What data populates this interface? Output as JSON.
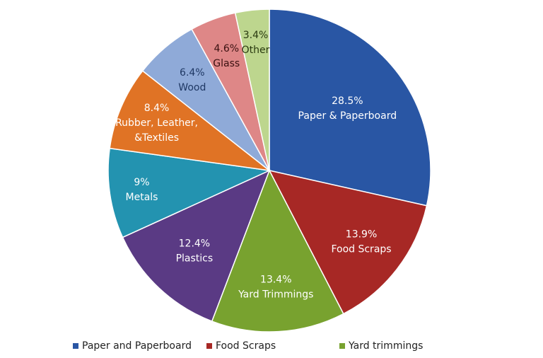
{
  "chart_data": {
    "type": "pie",
    "title": "",
    "categories": [
      "Paper & Paperboard",
      "Food Scraps",
      "Yard Trimmings",
      "Plastics",
      "Metals",
      "Rubber, Leather, &Textiles",
      "Wood",
      "Glass",
      "Other"
    ],
    "values": [
      28.5,
      13.9,
      13.4,
      12.4,
      9.0,
      8.4,
      6.4,
      4.6,
      3.4
    ],
    "slices": [
      {
        "pct": "28.5%",
        "label_lines": [
          "Paper & Paperboard"
        ],
        "color": "#2956A4",
        "text_color": "#ffffff"
      },
      {
        "pct": "13.9%",
        "label_lines": [
          "Food Scraps"
        ],
        "color": "#A72825",
        "text_color": "#ffffff"
      },
      {
        "pct": "13.4%",
        "label_lines": [
          "Yard Trimmings"
        ],
        "color": "#78A22F",
        "text_color": "#ffffff"
      },
      {
        "pct": "12.4%",
        "label_lines": [
          "Plastics"
        ],
        "color": "#5A3A84",
        "text_color": "#ffffff"
      },
      {
        "pct": "9%",
        "label_lines": [
          "Metals"
        ],
        "color": "#2393B0",
        "text_color": "#ffffff"
      },
      {
        "pct": "8.4%",
        "label_lines": [
          "Rubber, Leather,",
          "&Textiles"
        ],
        "color": "#E07325",
        "text_color": "#ffffff"
      },
      {
        "pct": "6.4%",
        "label_lines": [
          "Wood"
        ],
        "color": "#8FAAD8",
        "text_color": "#1F3864"
      },
      {
        "pct": "4.6%",
        "label_lines": [
          "Glass"
        ],
        "color": "#DE8787",
        "text_color": "#3a1010"
      },
      {
        "pct": "3.4%",
        "label_lines": [
          "Other"
        ],
        "color": "#BDD68E",
        "text_color": "#2a3a10"
      }
    ],
    "legend": [
      {
        "label": "Paper and Paperboard",
        "color": "#2956A4"
      },
      {
        "label": "Food Scraps",
        "color": "#A72825"
      },
      {
        "label": "Yard trimmings",
        "color": "#78A22F"
      }
    ],
    "legend_position": "bottom",
    "start_angle": "12 o'clock, clockwise"
  }
}
